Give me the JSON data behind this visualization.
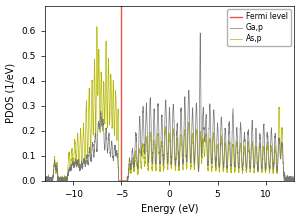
{
  "xlabel": "Energy (eV)",
  "ylabel": "PDOS (1/eV)",
  "xlim": [
    -13,
    13
  ],
  "ylim": [
    0,
    0.7
  ],
  "fermi_level": -5.0,
  "fermi_color": "#e8534a",
  "ga_color": "#777777",
  "as_color": "#b5b800",
  "legend_labels": [
    "Fermi level",
    "Ga,p",
    "As,p"
  ],
  "seed": 7,
  "yticks": [
    0.0,
    0.1,
    0.2,
    0.3,
    0.4,
    0.5,
    0.6
  ],
  "xticks": [
    -10,
    -5,
    0,
    5,
    10
  ],
  "bg_color": "#ffffff"
}
